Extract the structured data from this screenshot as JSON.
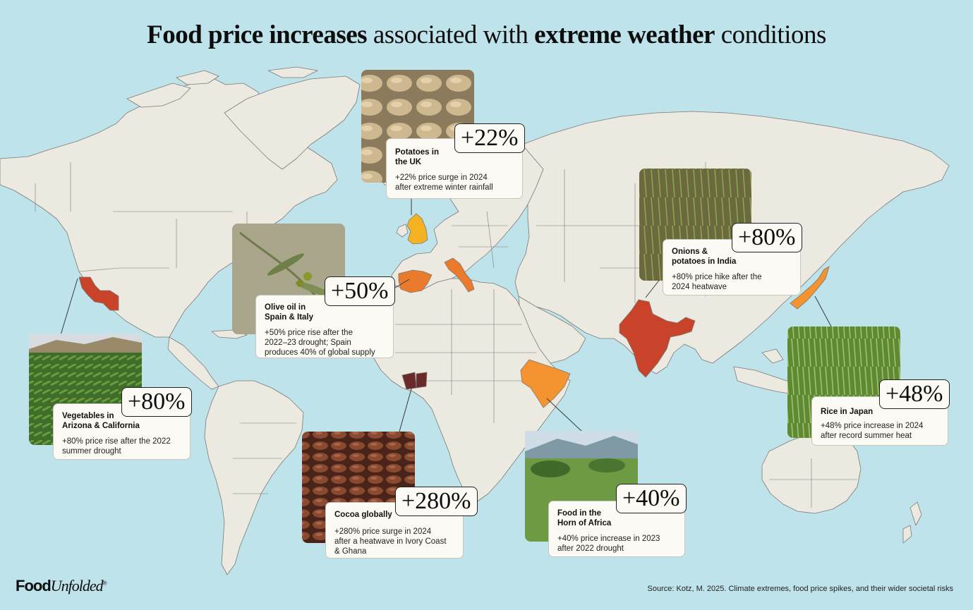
{
  "title": {
    "bold1": "Food price increases",
    "normal1": " associated with ",
    "bold2": "extreme weather",
    "normal2": " conditions"
  },
  "logo": {
    "part1": "Food",
    "part2": "Unfolded",
    "mark": "®"
  },
  "source": "Source:  Kotz, M. 2025. Climate extremes, food price spikes, and their wider societal risks",
  "colors": {
    "ocean": "#bfe3ea",
    "land": "#ece9e1",
    "border": "#7c7a74",
    "yellow": "#f4b223",
    "orange": "#ea7a2c",
    "bright_orange": "#f59331",
    "red": "#c8432a",
    "brown": "#6b2a2a"
  },
  "cards": [
    {
      "id": "uk",
      "name": "Potatoes in the UK",
      "name_lines": [
        "Potatoes in",
        "the UK"
      ],
      "badge": "+22%",
      "desc_lines": [
        "+22% price surge in 2024",
        "after extreme winter rainfall"
      ],
      "photo": "potatoes-photo"
    },
    {
      "id": "olive",
      "name_lines": [
        "Olive oil in",
        "Spain & Italy"
      ],
      "badge": "+50%",
      "desc_lines": [
        "+50% price rise after the",
        "2022–23 drought; Spain",
        "produces 40% of global supply"
      ],
      "photo": "olive-branch-photo"
    },
    {
      "id": "india",
      "name_lines": [
        "Onions &",
        "potatoes in India"
      ],
      "badge": "+80%",
      "desc_lines": [
        "+80% price hike after the",
        "2024 heatwave"
      ],
      "photo": "onion-field-photo"
    },
    {
      "id": "usa",
      "name_lines": [
        "Vegetables in",
        "Arizona & California"
      ],
      "badge": "+80%",
      "desc_lines": [
        "+80% price rise after the 2022",
        "summer drought"
      ],
      "photo": "irrigated-field-photo"
    },
    {
      "id": "cocoa",
      "name_lines": [
        "Cocoa globally"
      ],
      "badge": "+280%",
      "desc_lines": [
        "+280% price surge in 2024",
        "after a heatwave in Ivory Coast",
        "& Ghana"
      ],
      "photo": "cocoa-beans-photo"
    },
    {
      "id": "horn",
      "name_lines": [
        "Food in the",
        "Horn of Africa"
      ],
      "badge": "+40%",
      "desc_lines": [
        "+40% price increase in 2023",
        "after 2022 drought"
      ],
      "photo": "savanna-photo"
    },
    {
      "id": "japan",
      "name_lines": [
        "Rice in Japan"
      ],
      "badge": "+48%",
      "desc_lines": [
        "+48% price increase in 2024",
        "after record summer heat"
      ],
      "photo": "rice-field-photo"
    }
  ]
}
